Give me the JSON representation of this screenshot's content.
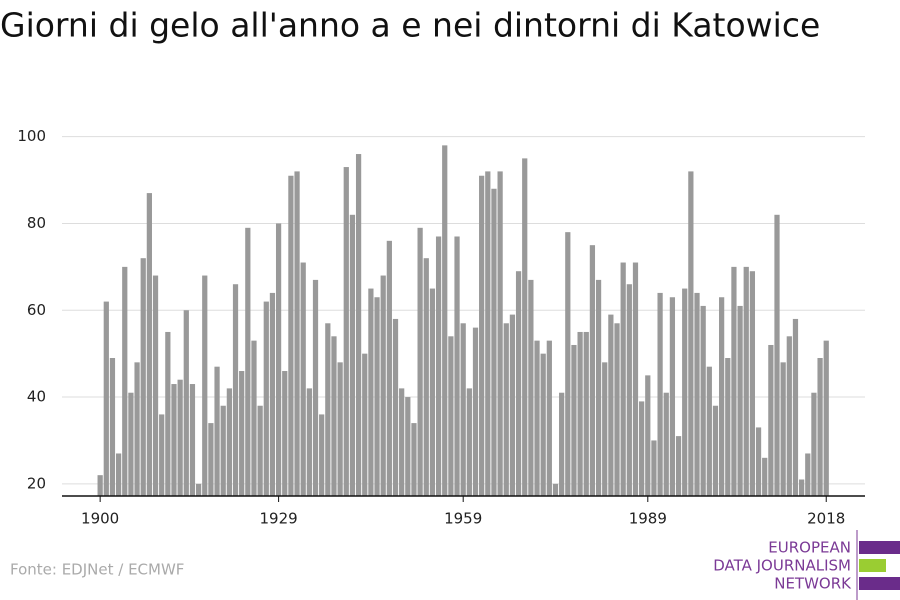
{
  "chart_data": {
    "type": "bar",
    "title": "Giorni di gelo all'anno a e nei dintorni di Katowice",
    "source": "Fonte: EDJNet / ECMWF",
    "color": "#999999",
    "grid": true,
    "x": [
      1900,
      1901,
      1902,
      1903,
      1904,
      1905,
      1906,
      1907,
      1908,
      1909,
      1910,
      1911,
      1912,
      1913,
      1914,
      1915,
      1916,
      1917,
      1918,
      1919,
      1920,
      1921,
      1922,
      1923,
      1924,
      1925,
      1926,
      1927,
      1928,
      1929,
      1930,
      1931,
      1932,
      1933,
      1934,
      1935,
      1936,
      1937,
      1938,
      1939,
      1940,
      1941,
      1942,
      1943,
      1944,
      1945,
      1946,
      1947,
      1948,
      1949,
      1950,
      1951,
      1952,
      1953,
      1954,
      1955,
      1956,
      1957,
      1958,
      1959,
      1960,
      1961,
      1962,
      1963,
      1964,
      1965,
      1966,
      1967,
      1968,
      1969,
      1970,
      1971,
      1972,
      1973,
      1974,
      1975,
      1976,
      1977,
      1978,
      1979,
      1980,
      1981,
      1982,
      1983,
      1984,
      1985,
      1986,
      1987,
      1988,
      1989,
      1990,
      1991,
      1992,
      1993,
      1994,
      1995,
      1996,
      1997,
      1998,
      1999,
      2000,
      2001,
      2002,
      2003,
      2004,
      2005,
      2006,
      2007,
      2008,
      2009,
      2010,
      2011,
      2012,
      2013,
      2014,
      2015,
      2016,
      2017,
      2018
    ],
    "values": [
      22,
      62,
      49,
      27,
      70,
      41,
      48,
      72,
      87,
      68,
      36,
      55,
      43,
      44,
      60,
      43,
      20,
      68,
      34,
      47,
      38,
      42,
      66,
      46,
      79,
      53,
      38,
      62,
      64,
      80,
      46,
      91,
      92,
      71,
      42,
      67,
      36,
      57,
      54,
      48,
      93,
      82,
      96,
      50,
      65,
      63,
      68,
      76,
      58,
      42,
      40,
      34,
      79,
      72,
      65,
      77,
      98,
      54,
      77,
      57,
      42,
      56,
      91,
      92,
      88,
      92,
      57,
      59,
      69,
      95,
      67,
      53,
      50,
      53,
      20,
      41,
      78,
      52,
      55,
      55,
      75,
      67,
      48,
      59,
      57,
      71,
      66,
      71,
      39,
      45,
      30,
      64,
      41,
      63,
      31,
      65,
      92,
      64,
      61,
      47,
      38,
      63,
      49,
      70,
      61,
      70,
      69,
      33,
      26,
      52,
      82,
      48,
      54,
      58,
      21,
      27,
      41,
      49,
      53
    ],
    "xlim": [
      1893.8,
      2024.3
    ],
    "xticks": [
      1900,
      1929,
      1959,
      1989,
      2018
    ],
    "ylim": [
      17.2,
      102
    ],
    "yticks": [
      20,
      40,
      60,
      80,
      100
    ]
  },
  "logo": {
    "lines": [
      "EUROPEAN",
      "DATA JOURNALISM",
      "NETWORK"
    ]
  }
}
